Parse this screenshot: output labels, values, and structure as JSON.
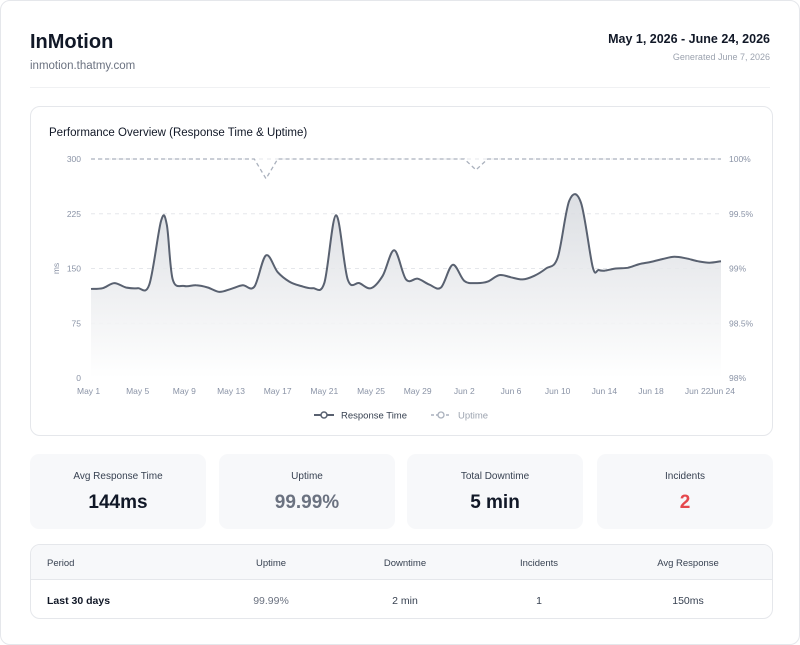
{
  "header": {
    "brand": "InMotion",
    "domain": "inmotion.thatmy.com",
    "date_range": "May 1, 2026 - June 24, 2026",
    "generated": "Generated June 7, 2026"
  },
  "chart_card": {
    "title": "Performance Overview (Response Time & Uptime)"
  },
  "chart_data": {
    "type": "line",
    "title": "Performance Overview (Response Time & Uptime)",
    "xlabel": "",
    "ylabel": "ms",
    "y2label": "",
    "x_tick_labels": [
      "May 1",
      "May 5",
      "May 9",
      "May 13",
      "May 17",
      "May 21",
      "May 25",
      "May 29",
      "Jun 2",
      "Jun 6",
      "Jun 10",
      "Jun 14",
      "Jun 18",
      "Jun 22",
      "Jun 24"
    ],
    "x_tick_days": [
      0,
      4,
      8,
      12,
      16,
      20,
      24,
      28,
      32,
      36,
      40,
      44,
      48,
      52,
      54
    ],
    "ylim": [
      0,
      300
    ],
    "y_ticks": [
      0,
      75,
      150,
      225,
      300
    ],
    "y2lim": [
      98,
      100
    ],
    "y2_ticks": [
      "98%",
      "98.5%",
      "99%",
      "99.5%",
      "100%"
    ],
    "grid": true,
    "legend_position": "bottom",
    "colors": {
      "response": "#596170",
      "uptime": "#aab1bd",
      "fill_top": "#d6d9de",
      "fill_bottom": "#ffffff"
    },
    "series": [
      {
        "name": "Response Time",
        "axis": "left",
        "x": [
          0,
          1,
          2,
          3,
          4,
          5,
          6,
          6.5,
          7,
          8,
          9,
          10,
          11,
          12,
          13,
          14,
          15,
          16,
          17,
          18,
          19,
          20,
          21,
          22,
          23,
          24,
          25,
          26,
          27,
          28,
          29,
          30,
          31,
          32,
          33,
          34,
          35,
          36,
          37,
          38,
          39,
          40,
          41,
          42,
          43,
          43.5,
          44,
          45,
          46,
          47,
          48,
          49,
          50,
          51,
          52,
          53,
          54
        ],
        "values": [
          122,
          123,
          130,
          124,
          123,
          128,
          215,
          210,
          135,
          126,
          127,
          124,
          118,
          122,
          127,
          125,
          168,
          145,
          132,
          126,
          123,
          130,
          223,
          135,
          130,
          123,
          140,
          175,
          135,
          136,
          128,
          124,
          155,
          133,
          130,
          132,
          141,
          138,
          135,
          140,
          150,
          165,
          243,
          240,
          152,
          148,
          147,
          150,
          151,
          156,
          159,
          163,
          166,
          164,
          160,
          158,
          160
        ]
      },
      {
        "name": "Uptime",
        "axis": "right",
        "x": [
          0,
          14,
          15,
          16,
          32,
          33,
          34,
          54
        ],
        "values": [
          100,
          100,
          99.82,
          100,
          100,
          99.9,
          100,
          100
        ]
      }
    ]
  },
  "stats": [
    {
      "label": "Avg Response Time",
      "value": "144ms",
      "color": "#111827"
    },
    {
      "label": "Uptime",
      "value": "99.99%",
      "color": "#6b7280"
    },
    {
      "label": "Total Downtime",
      "value": "5 min",
      "color": "#111827"
    },
    {
      "label": "Incidents",
      "value": "2",
      "color": "#e5484d"
    }
  ],
  "table": {
    "headers": [
      "Period",
      "Uptime",
      "Downtime",
      "Incidents",
      "Avg Response"
    ],
    "rows": [
      [
        "Last 30 days",
        "99.99%",
        "2 min",
        "1",
        "150ms"
      ]
    ]
  }
}
